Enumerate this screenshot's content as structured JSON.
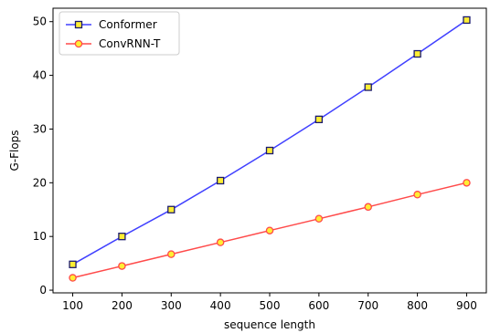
{
  "chart_data": {
    "type": "line",
    "title": "",
    "xlabel": "sequence length",
    "ylabel": "G-Flops",
    "x": [
      100,
      200,
      300,
      400,
      500,
      600,
      700,
      800,
      900
    ],
    "xlim": [
      60,
      940
    ],
    "ylim": [
      -0.5,
      52.5
    ],
    "xticks": [
      100,
      200,
      300,
      400,
      500,
      600,
      700,
      800,
      900
    ],
    "yticks": [
      0,
      10,
      20,
      30,
      40,
      50
    ],
    "grid": false,
    "legend_position": "top-left",
    "series": [
      {
        "name": "Conformer",
        "values": [
          4.8,
          10.0,
          15.0,
          20.4,
          26.0,
          31.8,
          37.8,
          44.0,
          50.3
        ],
        "line_color": "#4040ff",
        "marker": "square",
        "marker_fill": "#ffee33",
        "marker_edge": "#1a1a6e"
      },
      {
        "name": "ConvRNN-T",
        "values": [
          2.3,
          4.5,
          6.7,
          8.9,
          11.1,
          13.3,
          15.5,
          17.8,
          20.0
        ],
        "line_color": "#ff4a4a",
        "marker": "circle",
        "marker_fill": "#ffee33",
        "marker_edge": "#ff4a4a"
      }
    ]
  }
}
